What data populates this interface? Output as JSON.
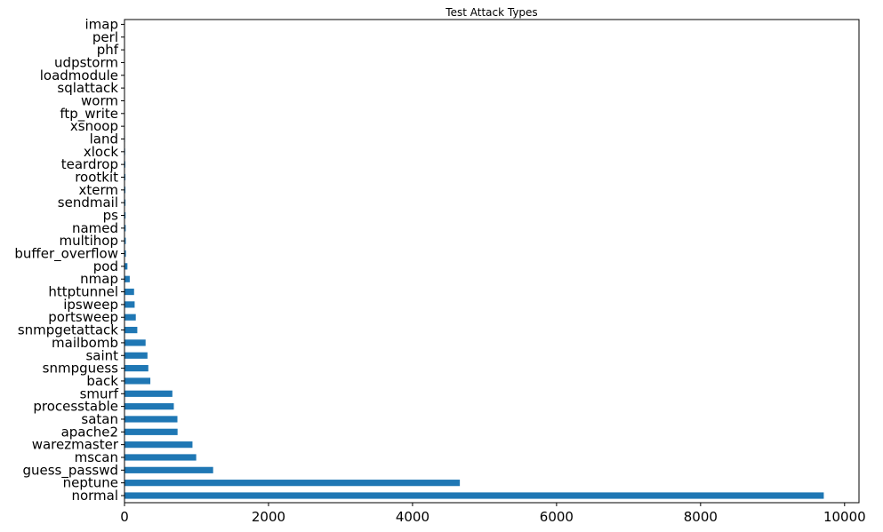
{
  "chart_data": {
    "type": "bar",
    "orientation": "horizontal",
    "title": "Test Attack Types",
    "xlabel": "",
    "ylabel": "",
    "xlim": [
      0,
      10200
    ],
    "xticks": [
      0,
      2000,
      4000,
      6000,
      8000,
      10000
    ],
    "grid": false,
    "legend": "none",
    "bar_color": "#1f77b4",
    "categories": [
      "normal",
      "neptune",
      "guess_passwd",
      "mscan",
      "warezmaster",
      "apache2",
      "satan",
      "processtable",
      "smurf",
      "back",
      "snmpguess",
      "saint",
      "mailbomb",
      "snmpgetattack",
      "portsweep",
      "ipsweep",
      "httptunnel",
      "nmap",
      "pod",
      "buffer_overflow",
      "multihop",
      "named",
      "ps",
      "sendmail",
      "xterm",
      "rootkit",
      "teardrop",
      "xlock",
      "land",
      "xsnoop",
      "ftp_write",
      "worm",
      "sqlattack",
      "loadmodule",
      "udpstorm",
      "phf",
      "perl",
      "imap"
    ],
    "values": [
      9711,
      4657,
      1231,
      996,
      944,
      737,
      735,
      685,
      665,
      359,
      331,
      319,
      293,
      178,
      157,
      141,
      133,
      73,
      41,
      20,
      18,
      17,
      15,
      14,
      13,
      13,
      12,
      9,
      7,
      4,
      3,
      2,
      2,
      2,
      2,
      2,
      2,
      1
    ]
  }
}
